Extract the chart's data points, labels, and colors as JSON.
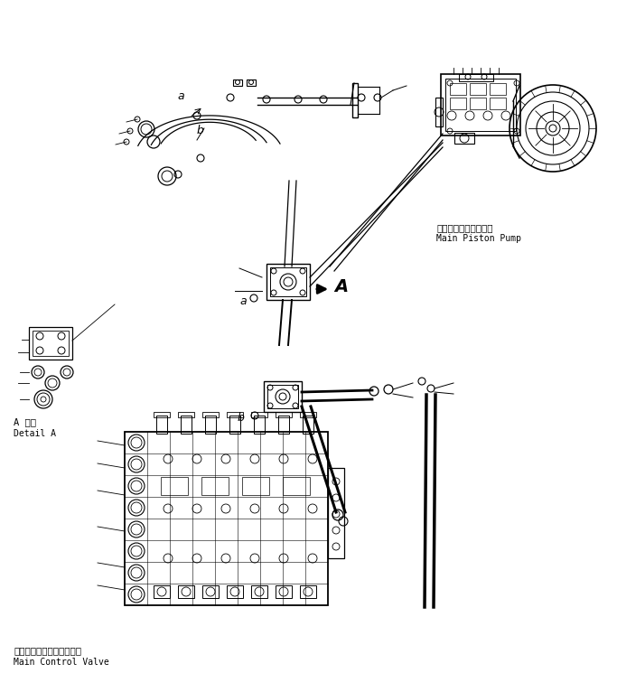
{
  "title": "",
  "background_color": "#ffffff",
  "line_color": "#000000",
  "figure_width": 6.83,
  "figure_height": 7.45,
  "dpi": 100,
  "labels": {
    "main_piston_pump_ja": "メインピストンポンプ",
    "main_piston_pump_en": "Main Piston Pump",
    "main_control_valve_ja": "メインコントロールバルブ",
    "main_control_valve_en": "Main Control Valve",
    "detail_a_ja": "A 詳細",
    "detail_a_en": "Detail A",
    "label_a": "a",
    "label_b": "b",
    "label_A": "A"
  }
}
